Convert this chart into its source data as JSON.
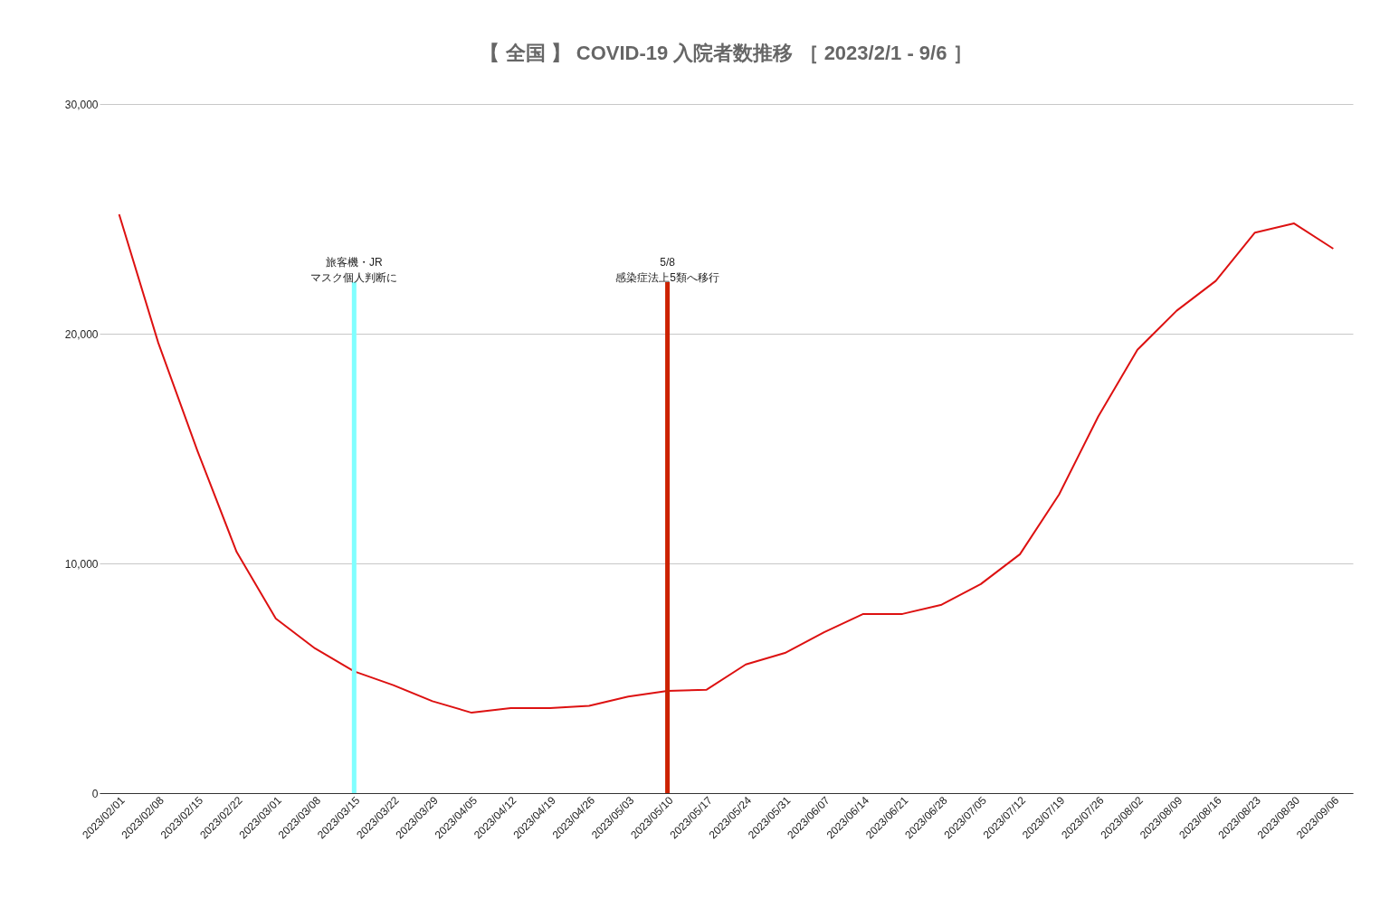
{
  "chart_data": {
    "type": "line",
    "title": "【 全国 】 COVID-19 入院者数推移 ［ 2023/2/1 - 9/6 ］",
    "categories": [
      "2023/02/01",
      "2023/02/08",
      "2023/02/15",
      "2023/02/22",
      "2023/03/01",
      "2023/03/08",
      "2023/03/15",
      "2023/03/22",
      "2023/03/29",
      "2023/04/05",
      "2023/04/12",
      "2023/04/19",
      "2023/04/26",
      "2023/05/03",
      "2023/05/10",
      "2023/05/17",
      "2023/05/24",
      "2023/05/31",
      "2023/06/07",
      "2023/06/14",
      "2023/06/21",
      "2023/06/28",
      "2023/07/05",
      "2023/07/12",
      "2023/07/19",
      "2023/07/26",
      "2023/08/02",
      "2023/08/09",
      "2023/08/16",
      "2023/08/23",
      "2023/08/30",
      "2023/09/06"
    ],
    "series": [
      {
        "color": "#dd1111",
        "values": [
          25200,
          19600,
          14900,
          10500,
          7600,
          6300,
          5300,
          4700,
          4000,
          3500,
          3700,
          3700,
          3800,
          4200,
          4450,
          4500,
          5600,
          6100,
          7000,
          7800,
          7800,
          8200,
          9100,
          10400,
          13000,
          16400,
          19300,
          21000,
          22300,
          24400,
          24800,
          23700
        ]
      }
    ],
    "ylim": [
      0,
      30000
    ],
    "yticks": [
      0,
      {
        "value": 10000,
        "label": "10,000"
      },
      {
        "value": 20000,
        "label": "20,000"
      },
      {
        "value": 30000,
        "label": "30,000"
      }
    ],
    "grid": "y",
    "legend": false,
    "marker": "none",
    "line_style": "solid",
    "ref_lines": [
      {
        "axis": "x",
        "value": "2023/03/15",
        "label": "旅客機・JR\nマスク個人判断に",
        "color": "#80ffff"
      },
      {
        "axis": "x",
        "value": "2023/05/10",
        "label": "5/8\n感染症法上5類へ移行",
        "color": "#cc2200"
      }
    ]
  }
}
